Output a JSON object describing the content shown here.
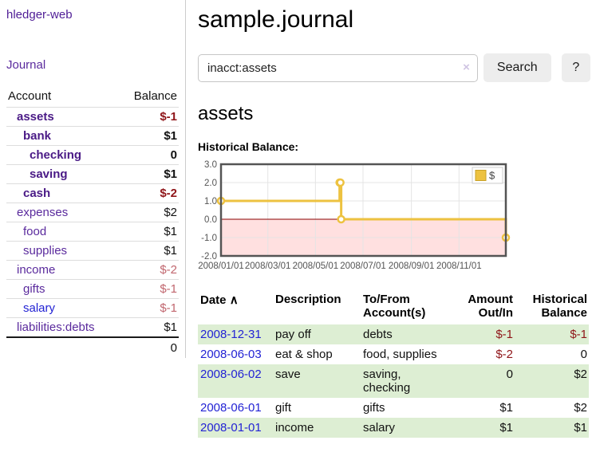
{
  "app": {
    "brand": "hledger-web",
    "nav": {
      "journal": "Journal"
    }
  },
  "colors": {
    "accent_purple": "#5a2a9d",
    "link_blue": "#2323d4",
    "negative_red": "#8f1519",
    "muted_negative": "#c1666e",
    "striped_row_green": "#ddeed3",
    "chart_gold": "#edc240",
    "chart_zero_line": "#8b0000",
    "chart_border": "#545454"
  },
  "sidebar": {
    "accounts_table": {
      "headers": {
        "account": "Account",
        "balance": "Balance"
      },
      "rows": [
        {
          "account": "assets",
          "balance": "$-1",
          "depth": 1,
          "bold": true,
          "balance_style": "neg"
        },
        {
          "account": "bank",
          "balance": "$1",
          "depth": 2,
          "bold": true,
          "balance_style": "pos"
        },
        {
          "account": "checking",
          "balance": "0",
          "depth": 3,
          "bold": true,
          "balance_style": "pos"
        },
        {
          "account": "saving",
          "balance": "$1",
          "depth": 3,
          "bold": true,
          "balance_style": "pos"
        },
        {
          "account": "cash",
          "balance": "$-2",
          "depth": 2,
          "bold": true,
          "balance_style": "neg"
        },
        {
          "account": "expenses",
          "balance": "$2",
          "depth": 1,
          "bold": false,
          "balance_style": "pos"
        },
        {
          "account": "food",
          "balance": "$1",
          "depth": 2,
          "bold": false,
          "balance_style": "pos"
        },
        {
          "account": "supplies",
          "balance": "$1",
          "depth": 2,
          "bold": false,
          "balance_style": "pos"
        },
        {
          "account": "income",
          "balance": "$-2",
          "depth": 1,
          "bold": false,
          "balance_style": "mutedneg"
        },
        {
          "account": "gifts",
          "balance": "$-1",
          "depth": 2,
          "bold": false,
          "balance_style": "mutedneg"
        },
        {
          "account": "salary",
          "balance": "$-1",
          "depth": 2,
          "bold": false,
          "balance_style": "mutedneg",
          "link_style": "unvisited"
        },
        {
          "account": "liabilities:debts",
          "balance": "$1",
          "depth": 1,
          "bold": false,
          "balance_style": "pos"
        }
      ],
      "total": "0"
    }
  },
  "main": {
    "title": "sample.journal",
    "search": {
      "value": "inacct:assets",
      "clear_icon": "×",
      "search_button": "Search",
      "help_button": "?"
    },
    "account_heading": "assets",
    "chart_label": "Historical Balance:"
  },
  "chart_data": {
    "type": "line",
    "step": true,
    "title": "Historical Balance",
    "ylim": [
      -2,
      3
    ],
    "xlim_days": [
      0,
      365
    ],
    "y_ticks": [
      {
        "v": 3,
        "label": "3.0"
      },
      {
        "v": 2,
        "label": "2.0"
      },
      {
        "v": 1,
        "label": "1.0"
      },
      {
        "v": 0,
        "label": "0.0"
      },
      {
        "v": -1,
        "label": "-1.0"
      },
      {
        "v": -2,
        "label": "-2.0"
      }
    ],
    "x_ticks": [
      {
        "day": 0,
        "label": "2008/01/01"
      },
      {
        "day": 60,
        "label": "2008/03/01"
      },
      {
        "day": 121,
        "label": "2008/05/01"
      },
      {
        "day": 182,
        "label": "2008/07/01"
      },
      {
        "day": 244,
        "label": "2008/09/01"
      },
      {
        "day": 305,
        "label": "2008/11/01"
      }
    ],
    "series": [
      {
        "name": "$",
        "color": "#edc240",
        "points": [
          {
            "date": "2008-01-01",
            "day": 0,
            "y": 1
          },
          {
            "date": "2008-06-01",
            "day": 152,
            "y": 2
          },
          {
            "date": "2008-06-02",
            "day": 153,
            "y": 2
          },
          {
            "date": "2008-06-03",
            "day": 154,
            "y": 0
          },
          {
            "date": "2008-12-31",
            "day": 365,
            "y": -1
          }
        ]
      }
    ],
    "legend": {
      "label": "$",
      "position": "top-right"
    },
    "grid": true,
    "negative_region_fill": "rgba(255,0,0,0.12)"
  },
  "register": {
    "headers": {
      "date": "Date",
      "sort_asc_icon": "∧",
      "description": "Description",
      "accounts": "To/From Account(s)",
      "amount": "Amount Out/In",
      "balance": "Historical Balance"
    },
    "rows": [
      {
        "date": "2008-12-31",
        "description": "pay off",
        "accounts": "debts",
        "amount": "$-1",
        "amount_style": "neg",
        "balance": "$-1",
        "balance_style": "neg",
        "striped": true
      },
      {
        "date": "2008-06-03",
        "description": "eat & shop",
        "accounts": "food, supplies",
        "amount": "$-2",
        "amount_style": "neg",
        "balance": "0",
        "balance_style": "pos",
        "striped": false
      },
      {
        "date": "2008-06-02",
        "description": "save",
        "accounts": "saving,\nchecking",
        "amount": "0",
        "amount_style": "pos",
        "balance": "$2",
        "balance_style": "pos",
        "striped": true
      },
      {
        "date": "2008-06-01",
        "description": "gift",
        "accounts": "gifts",
        "amount": "$1",
        "amount_style": "pos",
        "balance": "$2",
        "balance_style": "pos",
        "striped": false
      },
      {
        "date": "2008-01-01",
        "description": "income",
        "accounts": "salary",
        "amount": "$1",
        "amount_style": "pos",
        "balance": "$1",
        "balance_style": "pos",
        "striped": true
      }
    ]
  }
}
